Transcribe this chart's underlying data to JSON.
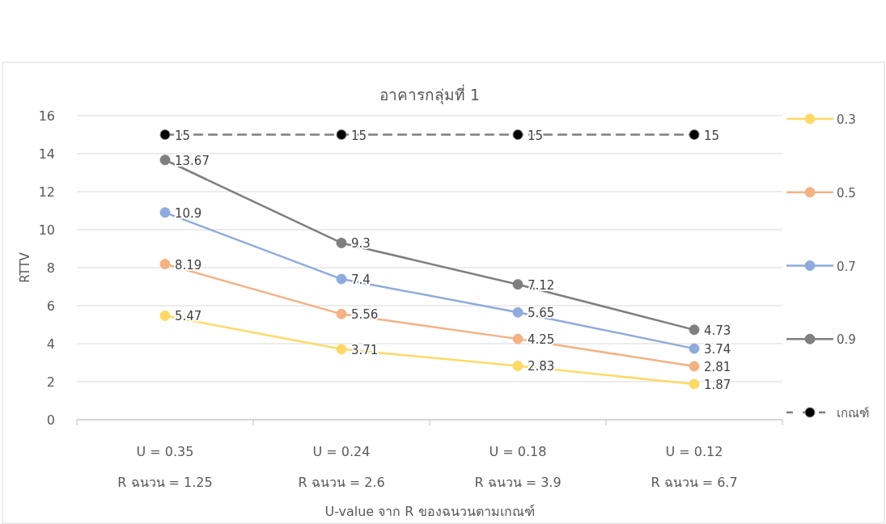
{
  "chart_data": {
    "type": "line",
    "title": "อาคารกลุ่มที่ 1",
    "xlabel": "U-value จาก R ของฉนวนตามเกณฑ์",
    "ylabel": "RTTV",
    "categories": [
      "U = 0.35\nR ฉนวน = 1.25",
      "U = 0.24\nR ฉนวน = 2.6",
      "U = 0.18\nR ฉนวน = 3.9",
      "U = 0.12\nR ฉนวน = 6.7"
    ],
    "series": [
      {
        "name": "0.3",
        "color": "#ffd966",
        "values": [
          5.47,
          3.71,
          2.83,
          1.87
        ]
      },
      {
        "name": "0.5",
        "color": "#f4b183",
        "values": [
          8.19,
          5.56,
          4.25,
          2.81
        ]
      },
      {
        "name": "0.7",
        "color": "#8faadc",
        "values": [
          10.9,
          7.4,
          5.65,
          3.74
        ]
      },
      {
        "name": "0.9",
        "color": "#7f7f7f",
        "values": [
          13.67,
          9.3,
          7.12,
          4.73
        ]
      },
      {
        "name": "เกณฑ์",
        "color": "#7f7f7f",
        "values": [
          15,
          15,
          15,
          15
        ],
        "line_style": "dashed"
      }
    ],
    "ylim": [
      0,
      16
    ],
    "yticks": [
      0,
      2,
      4,
      6,
      8,
      10,
      12,
      14,
      16
    ],
    "grid": "y",
    "legend": "right",
    "marker": "circle",
    "data_labels": true
  }
}
